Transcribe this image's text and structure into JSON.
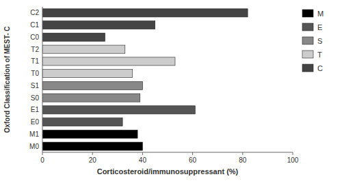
{
  "chart_data": {
    "type": "bar",
    "orientation": "horizontal",
    "stacked": true,
    "categories": [
      "M0",
      "M1",
      "E0",
      "E1",
      "S0",
      "S1",
      "T0",
      "T1",
      "T2",
      "C0",
      "C1",
      "C2"
    ],
    "series": [
      {
        "name": "M",
        "color": "#000000",
        "values": [
          40,
          38,
          null,
          null,
          null,
          null,
          null,
          null,
          null,
          null,
          null,
          null
        ]
      },
      {
        "name": "E",
        "color": "#555555",
        "values": [
          null,
          null,
          32,
          61,
          null,
          null,
          null,
          null,
          null,
          null,
          null,
          null
        ]
      },
      {
        "name": "S",
        "color": "#888888",
        "values": [
          null,
          null,
          null,
          null,
          39,
          40,
          null,
          null,
          null,
          null,
          null,
          null
        ]
      },
      {
        "name": "T",
        "color": "#cccccc",
        "values": [
          null,
          null,
          null,
          null,
          null,
          null,
          36,
          53,
          33,
          null,
          null,
          null
        ]
      },
      {
        "name": "C",
        "color": "#444444",
        "values": [
          null,
          null,
          null,
          null,
          null,
          null,
          null,
          null,
          null,
          25,
          45,
          82
        ]
      }
    ],
    "xlabel": "Corticosteroid/immunosuppressant (%)",
    "ylabel": "Oxford Classification of MEST- C",
    "xlim": [
      0,
      100
    ],
    "xticks": [
      0,
      20,
      40,
      60,
      80,
      100
    ],
    "grid": false,
    "legend": "right"
  }
}
